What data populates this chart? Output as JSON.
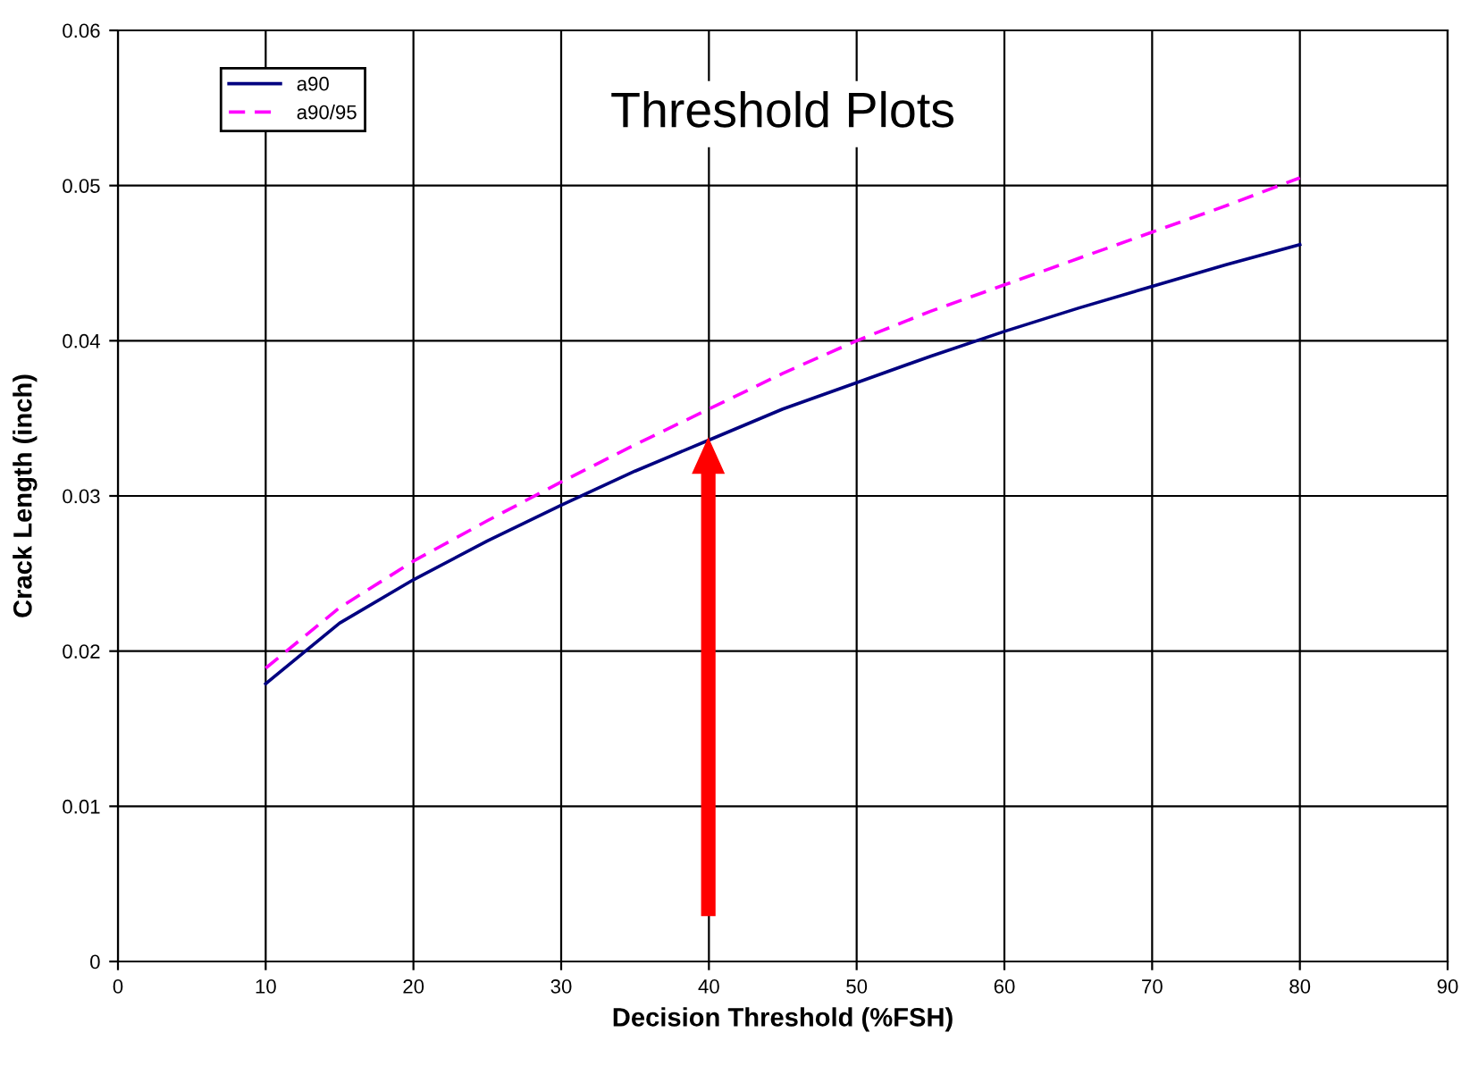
{
  "chart_data": {
    "type": "line",
    "title": "Threshold Plots",
    "xlabel": "Decision Threshold (%FSH)",
    "ylabel": "Crack Length (inch)",
    "x": [
      10,
      15,
      20,
      25,
      30,
      35,
      40,
      45,
      50,
      55,
      60,
      65,
      70,
      75,
      80
    ],
    "series": [
      {
        "name": "a90",
        "color": "#000080",
        "line_style": "solid",
        "values": [
          0.0179,
          0.0218,
          0.0246,
          0.0271,
          0.0294,
          0.0316,
          0.0336,
          0.0356,
          0.0373,
          0.039,
          0.0406,
          0.0421,
          0.0435,
          0.0449,
          0.0462
        ]
      },
      {
        "name": "a90/95",
        "color": "#ff00ff",
        "line_style": "dashed",
        "values": [
          0.0189,
          0.0228,
          0.0258,
          0.0284,
          0.0309,
          0.0333,
          0.0356,
          0.0379,
          0.04,
          0.0419,
          0.0436,
          0.0453,
          0.047,
          0.0487,
          0.0505
        ]
      }
    ],
    "xlim": [
      0,
      90
    ],
    "xticks": [
      0,
      10,
      20,
      30,
      40,
      50,
      60,
      70,
      80,
      90
    ],
    "ylim": [
      0,
      0.06
    ],
    "yticks": [
      0,
      0.01,
      0.02,
      0.03,
      0.04,
      0.05,
      0.06
    ],
    "grid": true,
    "legend": "top left",
    "marker": "none"
  }
}
